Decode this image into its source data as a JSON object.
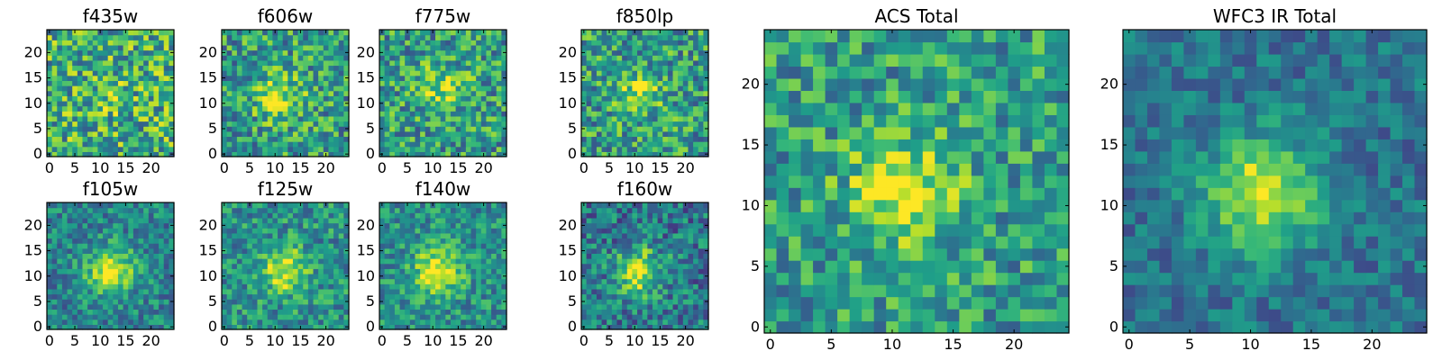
{
  "chart_data": [
    {
      "type": "heatmap",
      "title": "f435w",
      "cmap": "viridis",
      "grid": false,
      "xlim": [
        0,
        24
      ],
      "ylim": [
        0,
        24
      ],
      "x_ticks": [
        "0",
        "5",
        "10",
        "15",
        "20"
      ],
      "y_ticks": [
        "0",
        "5",
        "10",
        "15",
        "20"
      ],
      "values_note": "",
      "peak": [
        11,
        11
      ],
      "peak_strength": 0.1,
      "noise": 0.34,
      "base": 0.62
    },
    {
      "type": "heatmap",
      "title": "f606w",
      "cmap": "viridis",
      "grid": false,
      "xlim": [
        0,
        24
      ],
      "ylim": [
        0,
        24
      ],
      "x_ticks": [
        "0",
        "5",
        "10",
        "15",
        "20"
      ],
      "y_ticks": [
        "0",
        "5",
        "10",
        "15",
        "20"
      ],
      "values_note": "",
      "peak": [
        11,
        11
      ],
      "peak_strength": 0.35,
      "noise": 0.3,
      "base": 0.55
    },
    {
      "type": "heatmap",
      "title": "f775w",
      "cmap": "viridis",
      "grid": false,
      "xlim": [
        0,
        24
      ],
      "ylim": [
        0,
        24
      ],
      "x_ticks": [
        "0",
        "5",
        "10",
        "15",
        "20"
      ],
      "y_ticks": [
        "0",
        "5",
        "10",
        "15",
        "20"
      ],
      "values_note": "",
      "peak": [
        12,
        13
      ],
      "peak_strength": 0.28,
      "noise": 0.3,
      "base": 0.55
    },
    {
      "type": "heatmap",
      "title": "f850lp",
      "cmap": "viridis",
      "grid": false,
      "xlim": [
        0,
        24
      ],
      "ylim": [
        0,
        24
      ],
      "x_ticks": [
        "0",
        "5",
        "10",
        "15",
        "20"
      ],
      "y_ticks": [
        "0",
        "5",
        "10",
        "15",
        "20"
      ],
      "values_note": "",
      "peak": [
        11,
        12
      ],
      "peak_strength": 0.3,
      "noise": 0.3,
      "base": 0.55
    },
    {
      "type": "heatmap",
      "title": "f105w",
      "cmap": "viridis",
      "grid": false,
      "xlim": [
        0,
        24
      ],
      "ylim": [
        0,
        24
      ],
      "x_ticks": [
        "0",
        "5",
        "10",
        "15",
        "20"
      ],
      "y_ticks": [
        "0",
        "5",
        "10",
        "15",
        "20"
      ],
      "values_note": "",
      "peak": [
        12,
        11
      ],
      "peak_strength": 0.55,
      "noise": 0.22,
      "base": 0.45
    },
    {
      "type": "heatmap",
      "title": "f125w",
      "cmap": "viridis",
      "grid": false,
      "xlim": [
        0,
        24
      ],
      "ylim": [
        0,
        24
      ],
      "x_ticks": [
        "0",
        "5",
        "10",
        "15",
        "20"
      ],
      "y_ticks": [
        "0",
        "5",
        "10",
        "15",
        "20"
      ],
      "values_note": "",
      "peak": [
        12,
        11
      ],
      "peak_strength": 0.45,
      "noise": 0.24,
      "base": 0.5
    },
    {
      "type": "heatmap",
      "title": "f140w",
      "cmap": "viridis",
      "grid": false,
      "xlim": [
        0,
        24
      ],
      "ylim": [
        0,
        24
      ],
      "x_ticks": [
        "0",
        "5",
        "10",
        "15",
        "20"
      ],
      "y_ticks": [
        "0",
        "5",
        "10",
        "15",
        "20"
      ],
      "values_note": "",
      "peak": [
        11,
        11
      ],
      "peak_strength": 0.5,
      "noise": 0.22,
      "base": 0.5
    },
    {
      "type": "heatmap",
      "title": "f160w",
      "cmap": "viridis",
      "grid": false,
      "xlim": [
        0,
        24
      ],
      "ylim": [
        0,
        24
      ],
      "x_ticks": [
        "0",
        "5",
        "10",
        "15",
        "20"
      ],
      "y_ticks": [
        "0",
        "5",
        "10",
        "15",
        "20"
      ],
      "values_note": "",
      "peak": [
        11,
        11
      ],
      "peak_strength": 0.55,
      "noise": 0.26,
      "base": 0.4
    },
    {
      "type": "heatmap",
      "title": "ACS Total",
      "cmap": "viridis",
      "grid": false,
      "xlim": [
        0,
        24
      ],
      "ylim": [
        0,
        24
      ],
      "x_ticks": [
        "0",
        "5",
        "10",
        "15",
        "20"
      ],
      "y_ticks": [
        "0",
        "5",
        "10",
        "15",
        "20"
      ],
      "values_note": "",
      "peak": [
        11,
        11
      ],
      "peak_strength": 0.4,
      "noise": 0.26,
      "base": 0.55
    },
    {
      "type": "heatmap",
      "title": "WFC3 IR Total",
      "cmap": "viridis",
      "grid": false,
      "xlim": [
        0,
        24
      ],
      "ylim": [
        0,
        24
      ],
      "x_ticks": [
        "0",
        "5",
        "10",
        "15",
        "20"
      ],
      "y_ticks": [
        "0",
        "5",
        "10",
        "15",
        "20"
      ],
      "values_note": "",
      "peak": [
        11,
        11
      ],
      "peak_strength": 0.6,
      "noise": 0.16,
      "base": 0.38
    }
  ]
}
